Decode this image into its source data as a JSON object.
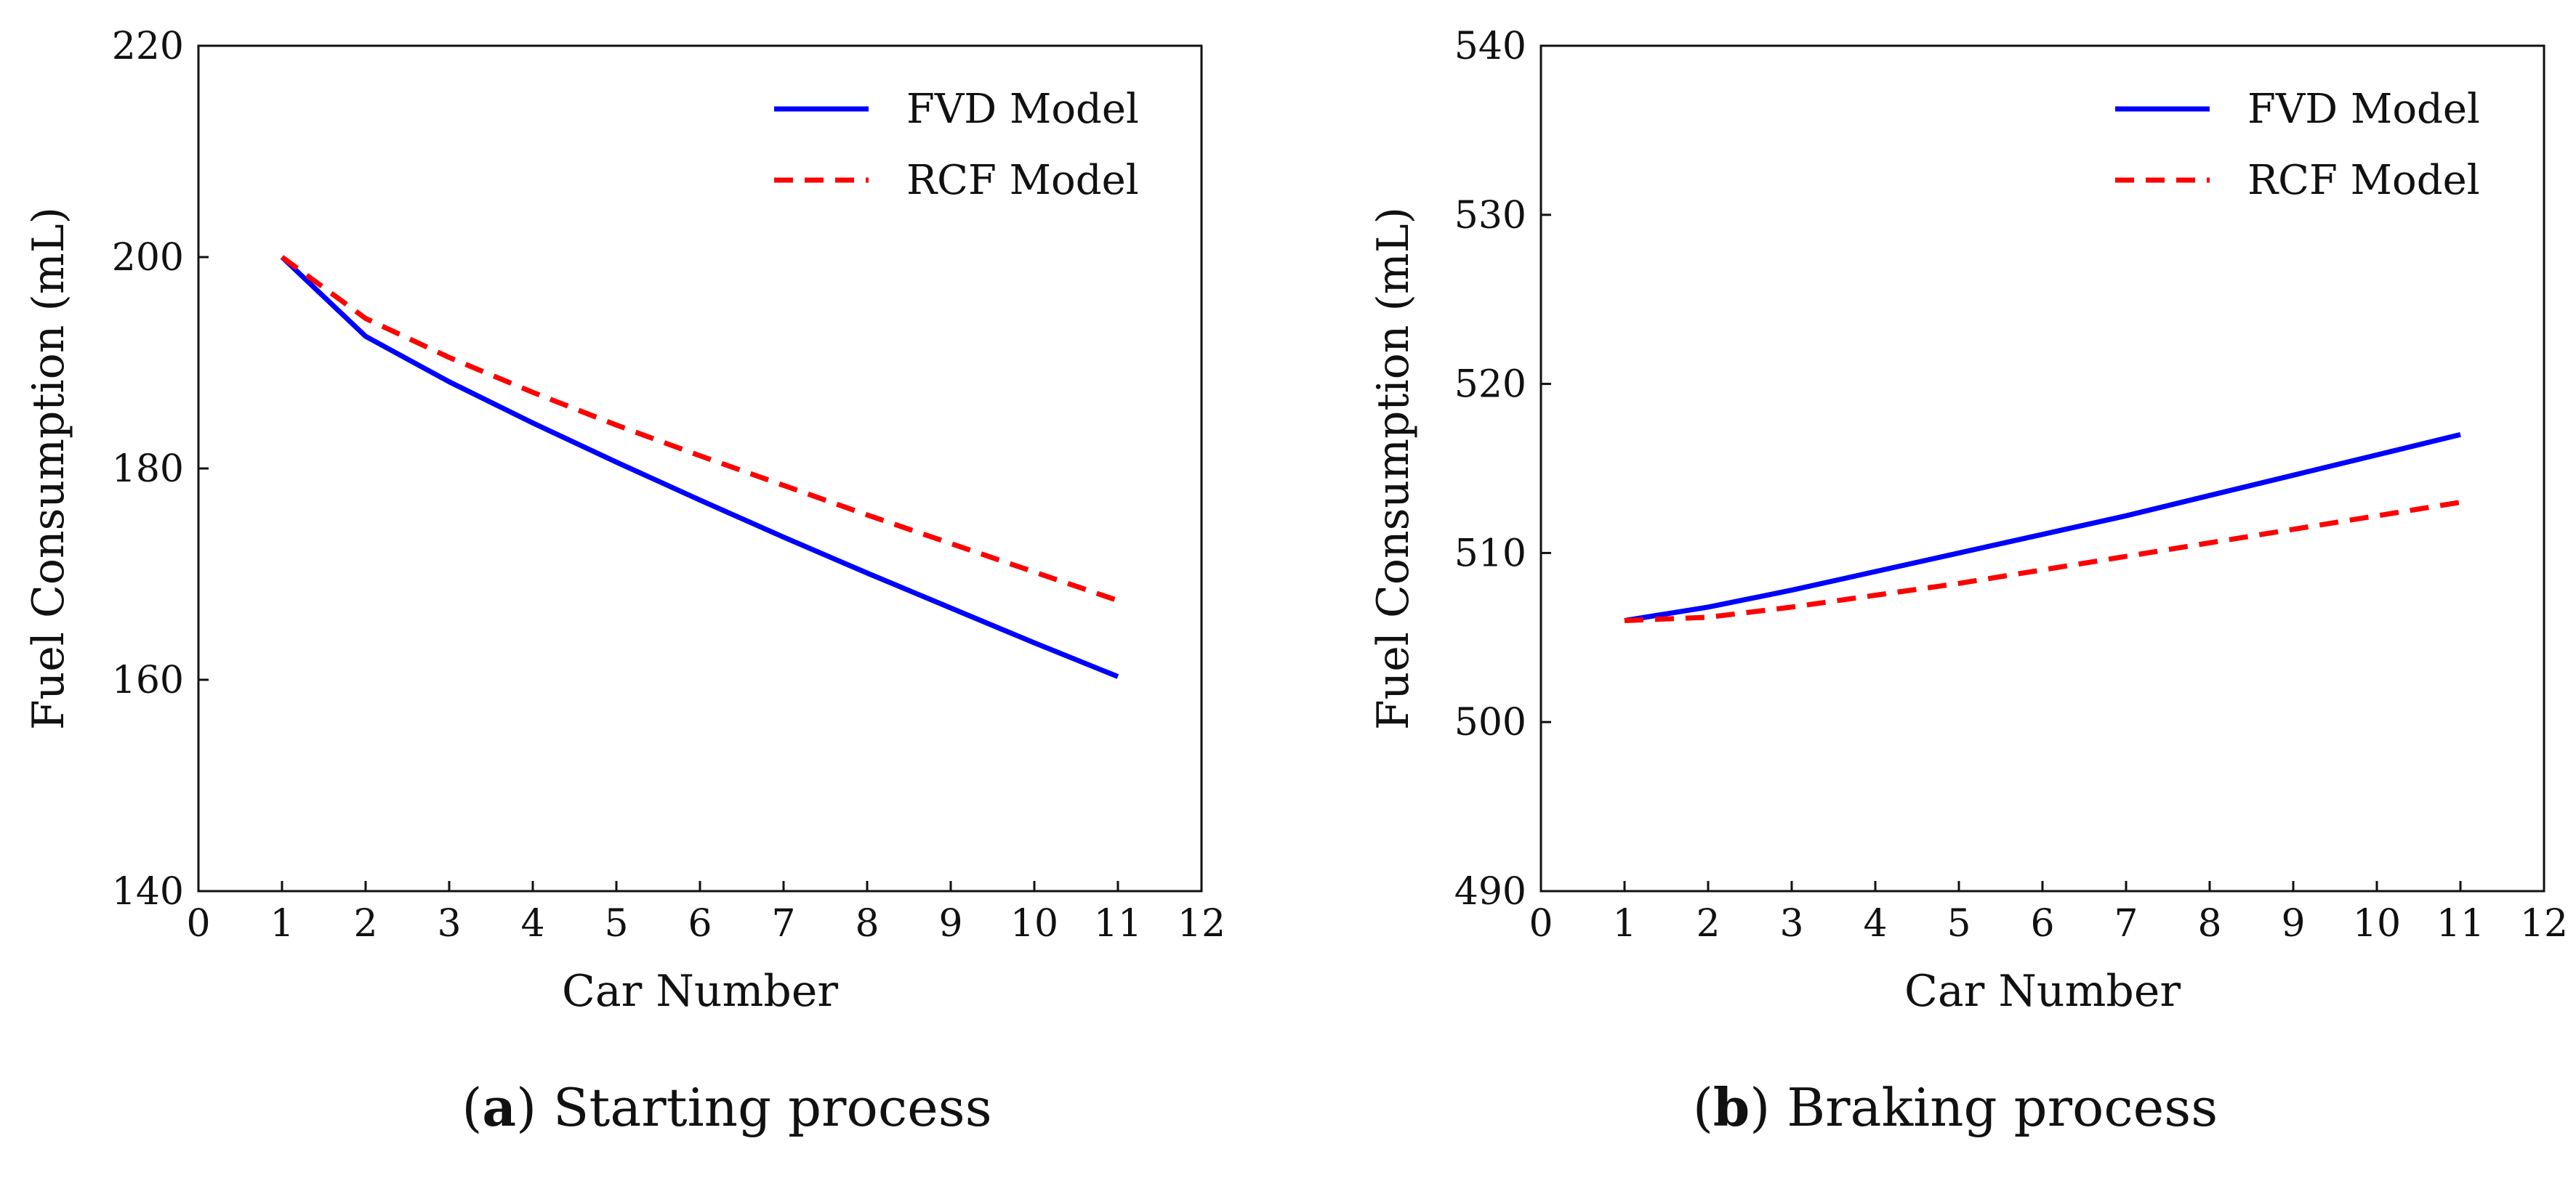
{
  "chart_data": [
    {
      "type": "line",
      "caption_letter": "a",
      "caption_text": ") Starting process",
      "caption_open": "(",
      "xlabel": "Car Number",
      "ylabel": "Fuel Consumption (mL)",
      "xlim": [
        0,
        12
      ],
      "ylim": [
        140,
        220
      ],
      "xticks": [
        0,
        1,
        2,
        3,
        4,
        5,
        6,
        7,
        8,
        9,
        10,
        11,
        12
      ],
      "yticks": [
        140,
        160,
        180,
        200,
        220
      ],
      "grid": false,
      "legend_position": "top-right",
      "x": [
        1,
        2,
        3,
        4,
        5,
        6,
        7,
        8,
        9,
        10,
        11
      ],
      "series": [
        {
          "name": "FVD Model",
          "color": "#0000ff",
          "style": "solid",
          "values": [
            200.0,
            192.5,
            188.2,
            184.3,
            180.6,
            177.0,
            173.5,
            170.1,
            166.8,
            163.5,
            160.3
          ]
        },
        {
          "name": "RCF Model",
          "color": "#ff0000",
          "style": "dashed",
          "values": [
            200.0,
            194.2,
            190.5,
            187.2,
            184.1,
            181.2,
            178.4,
            175.6,
            172.9,
            170.2,
            167.5
          ]
        }
      ]
    },
    {
      "type": "line",
      "caption_letter": "b",
      "caption_text": ") Braking process",
      "caption_open": "(",
      "xlabel": "Car Number",
      "ylabel": "Fuel Consumption (mL)",
      "xlim": [
        0,
        12
      ],
      "ylim": [
        490,
        540
      ],
      "xticks": [
        0,
        1,
        2,
        3,
        4,
        5,
        6,
        7,
        8,
        9,
        10,
        11,
        12
      ],
      "yticks": [
        490,
        500,
        510,
        520,
        530,
        540
      ],
      "grid": false,
      "legend_position": "top-right",
      "x": [
        1,
        2,
        3,
        4,
        5,
        6,
        7,
        8,
        9,
        10,
        11
      ],
      "series": [
        {
          "name": "FVD Model",
          "color": "#0000ff",
          "style": "solid",
          "values": [
            506.0,
            506.8,
            507.8,
            508.9,
            510.0,
            511.1,
            512.2,
            513.4,
            514.6,
            515.8,
            517.0
          ]
        },
        {
          "name": "RCF Model",
          "color": "#ff0000",
          "style": "dashed",
          "values": [
            506.0,
            506.2,
            506.8,
            507.5,
            508.2,
            509.0,
            509.8,
            510.6,
            511.4,
            512.2,
            513.0
          ]
        }
      ]
    }
  ]
}
